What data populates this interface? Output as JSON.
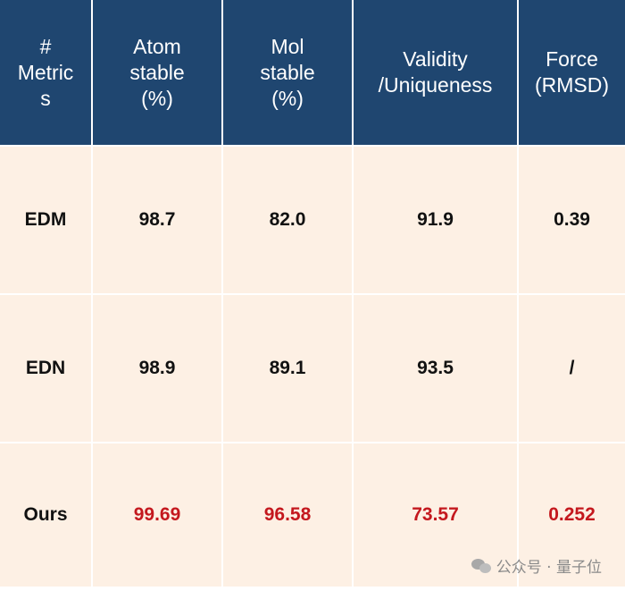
{
  "table": {
    "headers": [
      [
        "#",
        "Metric",
        "s"
      ],
      [
        "Atom",
        "stable",
        "(%)"
      ],
      [
        "Mol",
        "stable",
        "(%)"
      ],
      [
        "Validity",
        "/Uniqueness"
      ],
      [
        "Force",
        "(RMSD)"
      ]
    ],
    "rows": [
      {
        "label": "EDM",
        "values": [
          "98.7",
          "82.0",
          "91.9",
          "0.39"
        ]
      },
      {
        "label": "EDN",
        "values": [
          "98.9",
          "89.1",
          "93.5",
          "/"
        ]
      },
      {
        "label": "Ours",
        "values": [
          "99.69",
          "96.58",
          "73.57",
          "0.252"
        ]
      }
    ]
  },
  "colors": {
    "header_bg": "#1f4670",
    "body_bg": "#fdf0e4",
    "highlight": "#c4181e"
  },
  "watermark": {
    "text": "公众号 · 量子位",
    "icon": "wechat-icon"
  }
}
